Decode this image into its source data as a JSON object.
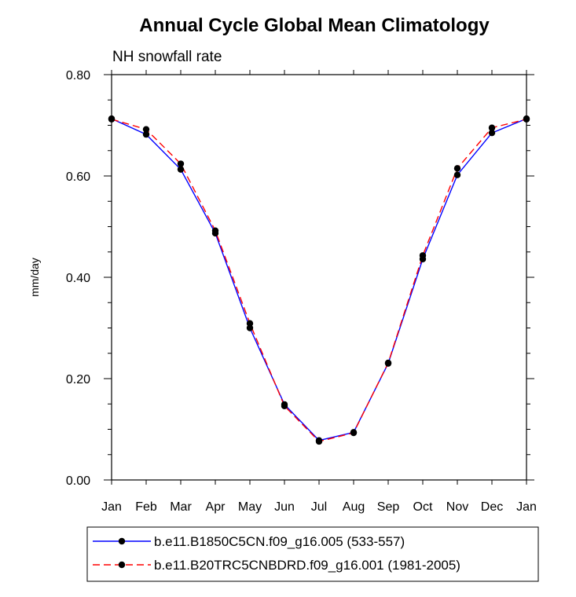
{
  "chart_data": {
    "type": "line",
    "title": "Annual Cycle Global Mean Climatology",
    "subtitle": "NH snowfall rate",
    "xlabel": "",
    "ylabel": "mm/day",
    "ylim": [
      0,
      0.8
    ],
    "y_ticks": [
      "0.00",
      "0.20",
      "0.40",
      "0.60",
      "0.80"
    ],
    "y_tick_values": [
      0,
      0.2,
      0.4,
      0.6,
      0.8
    ],
    "categories": [
      "Jan",
      "Feb",
      "Mar",
      "Apr",
      "May",
      "Jun",
      "Jul",
      "Aug",
      "Sep",
      "Oct",
      "Nov",
      "Dec",
      "Jan"
    ],
    "grid": false,
    "legend_position": "bottom",
    "series": [
      {
        "name": "b.e11.B1850C5CN.f09_g16.005 (533-557)",
        "color": "#0000ff",
        "line_style": "solid",
        "values": [
          0.713,
          0.682,
          0.613,
          0.487,
          0.3,
          0.149,
          0.078,
          0.094,
          0.23,
          0.436,
          0.602,
          0.685,
          0.713
        ]
      },
      {
        "name": "b.e11.B20TRC5CNBDRD.f09_g16.001 (1981-2005)",
        "color": "#ff0000",
        "line_style": "dashed",
        "values": [
          0.712,
          0.692,
          0.624,
          0.492,
          0.309,
          0.146,
          0.076,
          0.093,
          0.231,
          0.443,
          0.615,
          0.695,
          0.712
        ]
      }
    ]
  }
}
